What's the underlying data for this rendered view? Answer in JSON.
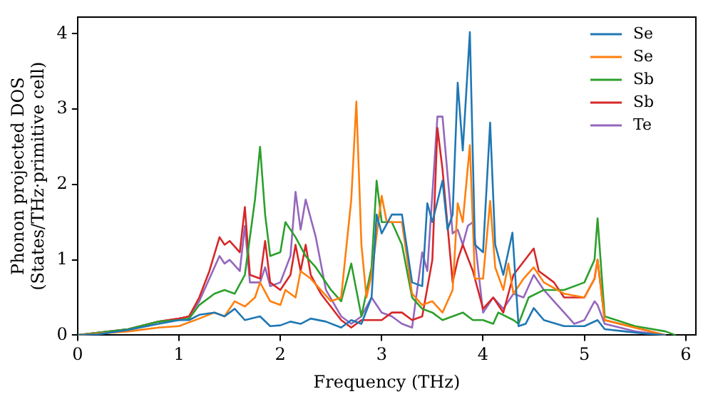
{
  "chart_data": {
    "type": "line",
    "xlabel": "Frequency (THz)",
    "ylabel": "Phonon projected DOS\n(States/THz·primitive cell)",
    "xlim": [
      0,
      6.1
    ],
    "ylim": [
      0,
      4.22
    ],
    "xticks": [
      0,
      1,
      2,
      3,
      4,
      5,
      6
    ],
    "yticks": [
      0,
      1,
      2,
      3,
      4
    ],
    "grid": false,
    "legend": "top right",
    "marker": "none",
    "line_style": "solid",
    "series": [
      {
        "name": "Se",
        "color": "#1f77b4",
        "x": [
          0,
          0.2,
          0.5,
          0.8,
          1.0,
          1.1,
          1.2,
          1.35,
          1.45,
          1.55,
          1.65,
          1.8,
          1.9,
          2.0,
          2.1,
          2.2,
          2.3,
          2.45,
          2.6,
          2.7,
          2.8,
          2.9,
          2.95,
          3.0,
          3.1,
          3.2,
          3.3,
          3.4,
          3.45,
          3.5,
          3.6,
          3.65,
          3.7,
          3.75,
          3.8,
          3.87,
          3.92,
          4.0,
          4.07,
          4.12,
          4.2,
          4.29,
          4.35,
          4.42,
          4.5,
          4.6,
          4.8,
          5.0,
          5.13,
          5.2,
          5.4,
          5.6,
          5.8
        ],
        "values": [
          0,
          0.01,
          0.07,
          0.15,
          0.2,
          0.2,
          0.27,
          0.3,
          0.25,
          0.35,
          0.2,
          0.25,
          0.12,
          0.13,
          0.18,
          0.15,
          0.22,
          0.18,
          0.1,
          0.2,
          0.15,
          0.5,
          1.6,
          1.35,
          1.6,
          1.6,
          0.7,
          0.65,
          1.75,
          1.5,
          2.05,
          1.4,
          1.6,
          3.35,
          2.45,
          4.02,
          1.2,
          1.1,
          2.82,
          1.2,
          0.8,
          1.36,
          0.12,
          0.15,
          0.36,
          0.2,
          0.12,
          0.12,
          0.2,
          0.08,
          0.05,
          0.02,
          0
        ]
      },
      {
        "name": "Se",
        "color": "#ff7f0e",
        "x": [
          0,
          0.5,
          0.8,
          1.0,
          1.2,
          1.35,
          1.45,
          1.55,
          1.65,
          1.75,
          1.8,
          1.9,
          2.0,
          2.05,
          2.15,
          2.2,
          2.3,
          2.5,
          2.6,
          2.7,
          2.75,
          2.8,
          2.85,
          2.9,
          3.0,
          3.05,
          3.2,
          3.3,
          3.4,
          3.5,
          3.6,
          3.7,
          3.75,
          3.8,
          3.87,
          3.92,
          4.0,
          4.07,
          4.12,
          4.2,
          4.25,
          4.3,
          4.4,
          4.5,
          4.6,
          4.8,
          5.0,
          5.1,
          5.13,
          5.2,
          5.5,
          5.8
        ],
        "values": [
          0,
          0.05,
          0.1,
          0.12,
          0.22,
          0.3,
          0.25,
          0.45,
          0.38,
          0.5,
          0.7,
          0.45,
          0.4,
          0.6,
          0.5,
          0.85,
          0.75,
          0.45,
          0.5,
          1.8,
          3.1,
          1.2,
          0.5,
          0.8,
          1.85,
          1.5,
          1.5,
          0.55,
          0.4,
          0.45,
          0.3,
          0.6,
          1.75,
          1.5,
          2.52,
          0.75,
          0.75,
          1.78,
          0.9,
          0.6,
          0.95,
          0.55,
          0.75,
          0.9,
          0.7,
          0.55,
          0.5,
          0.75,
          1.0,
          0.2,
          0.1,
          0
        ]
      },
      {
        "name": "Sb",
        "color": "#2ca02c",
        "x": [
          0,
          0.5,
          0.8,
          1.0,
          1.1,
          1.2,
          1.35,
          1.45,
          1.55,
          1.65,
          1.75,
          1.8,
          1.85,
          1.9,
          2.0,
          2.05,
          2.15,
          2.25,
          2.35,
          2.5,
          2.6,
          2.7,
          2.75,
          2.8,
          2.9,
          2.95,
          3.0,
          3.1,
          3.2,
          3.3,
          3.4,
          3.5,
          3.6,
          3.7,
          3.8,
          3.9,
          4.0,
          4.1,
          4.15,
          4.3,
          4.35,
          4.45,
          4.6,
          4.8,
          5.0,
          5.1,
          5.13,
          5.2,
          5.5,
          5.8,
          5.9
        ],
        "values": [
          0,
          0.08,
          0.18,
          0.2,
          0.22,
          0.4,
          0.55,
          0.6,
          0.55,
          0.8,
          1.8,
          2.5,
          1.6,
          1.05,
          1.1,
          1.5,
          1.3,
          1.05,
          0.9,
          0.6,
          0.45,
          0.95,
          0.6,
          0.25,
          0.9,
          2.05,
          1.5,
          1.5,
          1.2,
          0.5,
          0.35,
          0.3,
          0.2,
          0.25,
          0.3,
          0.2,
          0.2,
          0.15,
          0.3,
          0.2,
          0.15,
          0.5,
          0.6,
          0.6,
          0.7,
          1.0,
          1.55,
          0.25,
          0.12,
          0.05,
          0
        ]
      },
      {
        "name": "Sb",
        "color": "#d62728",
        "x": [
          0,
          0.5,
          0.8,
          1.0,
          1.1,
          1.2,
          1.3,
          1.4,
          1.45,
          1.5,
          1.6,
          1.65,
          1.7,
          1.8,
          1.85,
          1.9,
          2.0,
          2.1,
          2.15,
          2.2,
          2.25,
          2.3,
          2.4,
          2.6,
          2.7,
          2.8,
          3.0,
          3.1,
          3.2,
          3.3,
          3.4,
          3.5,
          3.55,
          3.6,
          3.7,
          3.75,
          3.8,
          3.9,
          4.0,
          4.1,
          4.2,
          4.3,
          4.5,
          4.55,
          4.7,
          4.8,
          5.0,
          5.1,
          5.13,
          5.2,
          5.5,
          5.8
        ],
        "values": [
          0,
          0.08,
          0.18,
          0.22,
          0.25,
          0.5,
          0.85,
          1.3,
          1.2,
          1.25,
          1.1,
          1.7,
          0.8,
          0.75,
          1.25,
          0.7,
          0.6,
          0.8,
          1.2,
          0.85,
          1.2,
          0.8,
          0.55,
          0.2,
          0.1,
          0.2,
          0.2,
          0.3,
          0.3,
          0.2,
          0.25,
          1.0,
          2.75,
          2.2,
          0.7,
          1.0,
          1.2,
          0.85,
          0.35,
          0.5,
          0.3,
          0.8,
          1.15,
          0.85,
          0.7,
          0.5,
          0.5,
          0.75,
          1.0,
          0.2,
          0.1,
          0
        ]
      },
      {
        "name": "Te",
        "color": "#9467bd",
        "x": [
          0,
          0.5,
          0.8,
          1.0,
          1.1,
          1.2,
          1.3,
          1.4,
          1.45,
          1.5,
          1.6,
          1.65,
          1.7,
          1.8,
          1.85,
          1.9,
          2.0,
          2.1,
          2.15,
          2.2,
          2.25,
          2.35,
          2.45,
          2.6,
          2.7,
          2.8,
          2.9,
          3.0,
          3.1,
          3.2,
          3.3,
          3.4,
          3.45,
          3.55,
          3.6,
          3.7,
          3.75,
          3.8,
          3.85,
          3.9,
          4.0,
          4.1,
          4.2,
          4.3,
          4.4,
          4.5,
          4.6,
          4.7,
          4.8,
          4.9,
          5.0,
          5.1,
          5.13,
          5.2,
          5.5,
          5.8
        ],
        "values": [
          0,
          0.08,
          0.18,
          0.22,
          0.25,
          0.45,
          0.75,
          1.05,
          0.95,
          1.0,
          0.85,
          1.45,
          0.7,
          0.7,
          0.9,
          0.65,
          0.7,
          1.05,
          1.9,
          1.4,
          1.8,
          1.3,
          0.6,
          0.25,
          0.15,
          0.25,
          0.5,
          0.3,
          0.25,
          0.15,
          0.1,
          1.1,
          0.85,
          2.9,
          2.9,
          1.35,
          1.4,
          1.2,
          1.45,
          1.5,
          0.3,
          0.5,
          0.35,
          0.55,
          0.5,
          0.8,
          0.6,
          0.45,
          0.3,
          0.15,
          0.2,
          0.45,
          0.4,
          0.15,
          0.05,
          0
        ]
      }
    ]
  }
}
